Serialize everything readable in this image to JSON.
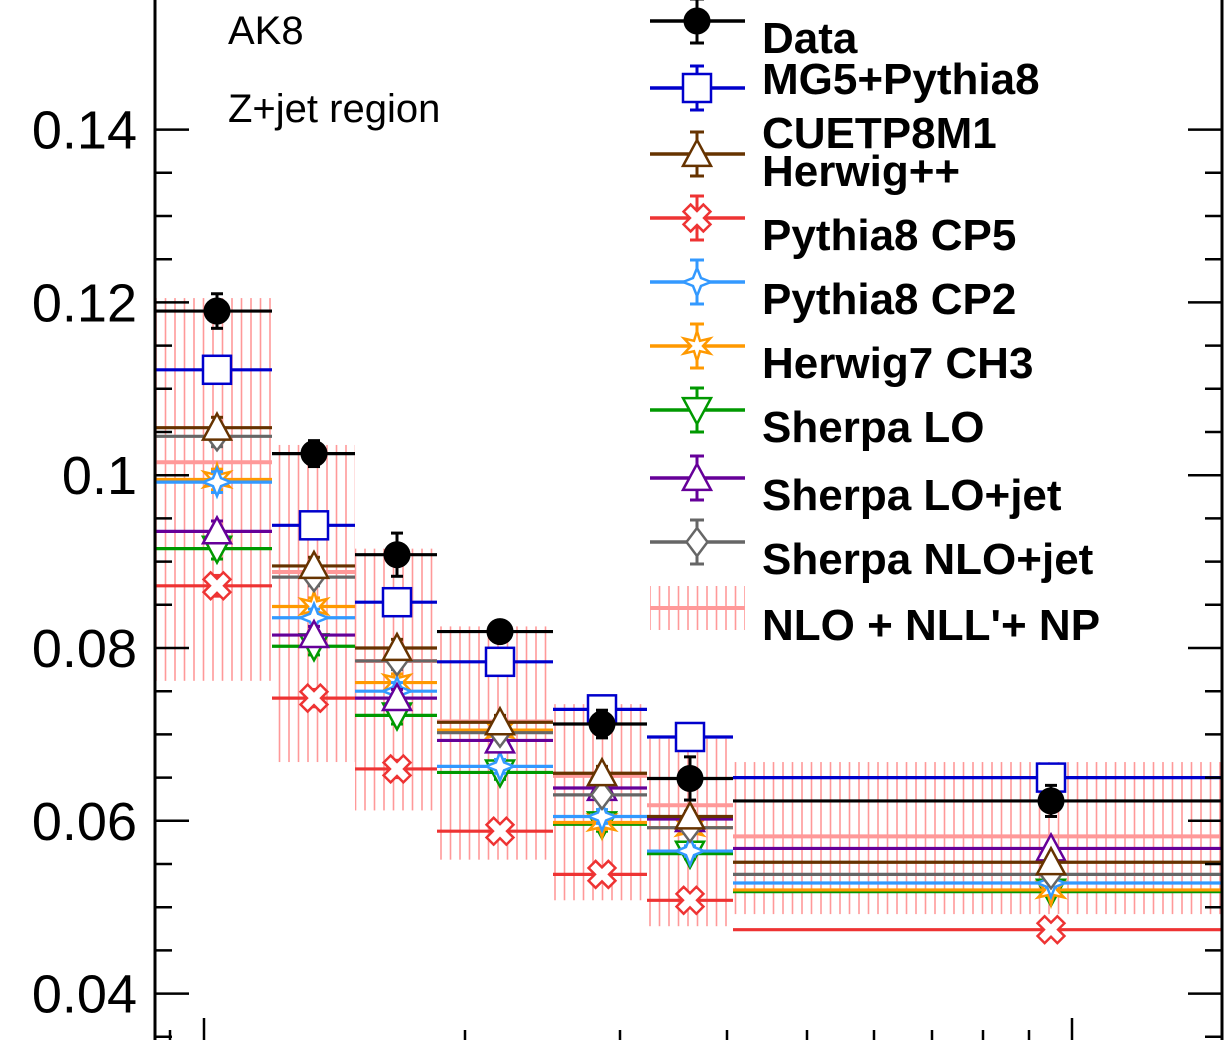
{
  "chart_data": {
    "type": "line",
    "annotations": [
      "AK8",
      "Z+jet region"
    ],
    "xlabel": "",
    "ylabel": "",
    "xscale": "log",
    "bin_edges": [
      0,
      1,
      2,
      3,
      4,
      5,
      6,
      7
    ],
    "ylim": [
      0.025,
      0.145
    ],
    "yticks": [
      0.04,
      0.06,
      0.08,
      0.1,
      0.12,
      0.14
    ],
    "ytick_labels": [
      "0.04",
      "0.06",
      "0.08",
      "0.1",
      "0.12",
      "0.14"
    ],
    "legend_position": "top-right",
    "series": [
      {
        "name": "Data",
        "color": "#000000",
        "marker": "filled-circle",
        "values": [
          0.119,
          0.1025,
          0.0908,
          0.0819,
          0.0712,
          0.0649,
          0.0623
        ],
        "errors": [
          0.002,
          0.0015,
          0.0025,
          0.0012,
          0.0016,
          0.0025,
          0.0018
        ]
      },
      {
        "name": "MG5+Pythia8 CUETP8M1",
        "color": "#0000cc",
        "marker": "open-square",
        "values": [
          0.1122,
          0.0942,
          0.0853,
          0.0784,
          0.0729,
          0.0697,
          0.065
        ],
        "errors": [
          0.0015,
          0.001,
          0.001,
          0.0008,
          0.0008,
          0.0006,
          0.0005
        ]
      },
      {
        "name": "Herwig++",
        "color": "#663300",
        "marker": "open-triangle-up",
        "values": [
          0.1055,
          0.0895,
          0.08,
          0.0714,
          0.0655,
          0.0605,
          0.0552
        ],
        "errors": [
          0.0012,
          0.001,
          0.001,
          0.0008,
          0.0008,
          0.0006,
          0.0005
        ]
      },
      {
        "name": "Pythia8 CP5",
        "color": "#ee3333",
        "marker": "open-cross",
        "values": [
          0.0872,
          0.0742,
          0.066,
          0.0588,
          0.0538,
          0.0508,
          0.0474
        ],
        "errors": [
          0.0012,
          0.001,
          0.001,
          0.0008,
          0.0008,
          0.0006,
          0.0005
        ]
      },
      {
        "name": "Pythia8 CP2",
        "color": "#3399ff",
        "marker": "open-star4",
        "values": [
          0.0992,
          0.0835,
          0.075,
          0.0663,
          0.0605,
          0.0565,
          0.0528
        ],
        "errors": [
          0.0012,
          0.001,
          0.001,
          0.0008,
          0.0008,
          0.0006,
          0.0005
        ]
      },
      {
        "name": "Herwig7 CH3",
        "color": "#ff9900",
        "marker": "open-star6",
        "values": [
          0.0995,
          0.0848,
          0.076,
          0.0705,
          0.0598,
          0.0592,
          0.052
        ],
        "errors": [
          0.0012,
          0.001,
          0.001,
          0.0008,
          0.0008,
          0.0006,
          0.0005
        ]
      },
      {
        "name": "Sherpa LO",
        "color": "#009900",
        "marker": "open-triangle-down",
        "values": [
          0.0915,
          0.0802,
          0.0722,
          0.0656,
          0.0596,
          0.0562,
          0.0518
        ],
        "errors": [
          0.0012,
          0.001,
          0.001,
          0.0008,
          0.0008,
          0.0006,
          0.0005
        ]
      },
      {
        "name": "Sherpa LO+jet",
        "color": "#660099",
        "marker": "open-triangle-up",
        "values": [
          0.0935,
          0.0815,
          0.0742,
          0.0693,
          0.0638,
          0.0602,
          0.0568
        ],
        "errors": [
          0.0012,
          0.001,
          0.001,
          0.0008,
          0.0008,
          0.0006,
          0.0005
        ]
      },
      {
        "name": "Sherpa NLO+jet",
        "color": "#666666",
        "marker": "open-diamond",
        "values": [
          0.1045,
          0.0882,
          0.0785,
          0.0702,
          0.063,
          0.0592,
          0.0538
        ],
        "errors": [
          0.0012,
          0.001,
          0.001,
          0.0008,
          0.0008,
          0.0006,
          0.0005
        ]
      },
      {
        "name": "NLO + NLL'+ NP",
        "color": "#ff9999",
        "marker": "hatched-band",
        "values": [
          0.1015,
          0.0888,
          0.0785,
          0.0715,
          0.0652,
          0.0618,
          0.0582
        ],
        "band_low": [
          0.0762,
          0.0668,
          0.0612,
          0.0555,
          0.0508,
          0.0478,
          0.0492
        ],
        "band_high": [
          0.1205,
          0.1035,
          0.0915,
          0.0825,
          0.0735,
          0.0695,
          0.0668
        ]
      }
    ]
  }
}
